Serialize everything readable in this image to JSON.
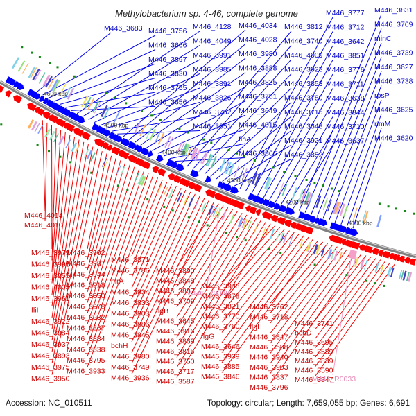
{
  "title": "Methylobacterium sp. 4-46, complete genome",
  "footer": {
    "accession": "Accession: NC_010511",
    "summary": "Topology: circular; Length: 7,659,055 bp; Genes: 6,691"
  },
  "colors": {
    "forward": "#0000ff",
    "reverse": "#ff0000",
    "rna": "#f5a0c8",
    "backbone": "#808080"
  },
  "kbp_ticks": [
    "4600 kbp",
    "4500 kbp",
    "4400 kbp",
    "4300 kbp",
    "4200 kbp",
    "4100 kbp"
  ],
  "blue_labels": [
    "M446_3683",
    "M446_3756",
    "M446_3666",
    "M446_3897",
    "M446_3830",
    "M446_3755",
    "M446_3656",
    "M446_4128",
    "M446_4049",
    "M446_3991",
    "M446_3985",
    "M446_3891",
    "M446_3826",
    "M446_3752",
    "M446_3651",
    "M446_4034",
    "M446_4028",
    "M446_3980",
    "M446_3888",
    "M446_3825",
    "M446_3751",
    "M446_3649",
    "M446_4015",
    "flhA",
    "M446_3866",
    "M446_3812",
    "M446_3740",
    "M446_4009",
    "M446_3923",
    "M446_3853",
    "M446_3780",
    "M446_3715",
    "M446_3648",
    "M446_3921",
    "M446_3852",
    "M446_3777",
    "M446_3712",
    "M446_3642",
    "M446_3851",
    "M446_3776",
    "M446_3711",
    "M446_3638",
    "M446_3844",
    "M446_3710",
    "M446_3637",
    "M446_3831",
    "M446_3769",
    "minC",
    "M446_3739",
    "M446_3627",
    "M446_3738",
    "rpsP",
    "M446_3625",
    "rimM",
    "M446_3620"
  ],
  "red_labels": [
    "M446_4014",
    "M446_4010",
    "M446_3979",
    "M446_3995",
    "M446_3955",
    "M446_4005",
    "M446_3961",
    "fliI",
    "M446_3922",
    "M446_3984",
    "M446_3937",
    "M446_3893",
    "M446_3975",
    "M446_3950",
    "M446_3902",
    "M446_3987",
    "M446_3944",
    "M446_3918",
    "M446_3850",
    "M446_3978",
    "M446_3932",
    "M446_3867",
    "M446_3884",
    "M446_3838",
    "M446_3795",
    "M446_3933",
    "M446_3871",
    "M446_3786",
    "nirA",
    "M446_3934",
    "M446_3833",
    "M446_3803",
    "M446_3886",
    "M446_3845",
    "bchH",
    "M446_3680",
    "M446_3749",
    "M446_3936",
    "M446_3890",
    "M446_3848",
    "M446_3807",
    "M446_3709",
    "flgB",
    "M446_3645",
    "M446_3916",
    "M446_3869",
    "M446_3815",
    "M446_3750",
    "M446_3717",
    "M446_3587",
    "M446_3938",
    "M446_3878",
    "M446_3821",
    "M446_3770",
    "M446_3760",
    "flgG",
    "M446_3646",
    "M446_3939",
    "M446_3885",
    "M446_3846",
    "M446_3762",
    "M446_3718",
    "flgI",
    "M446_3647",
    "M446_3588",
    "M446_3940",
    "M446_3903",
    "M446_3837",
    "M446_3796",
    "M446_3741",
    "bchD",
    "M446_3695",
    "M446_3589",
    "M446_3839",
    "M446_3590",
    "M446_3847"
  ],
  "rna_labels": [
    "M446_R0038",
    "M446_R0033"
  ]
}
